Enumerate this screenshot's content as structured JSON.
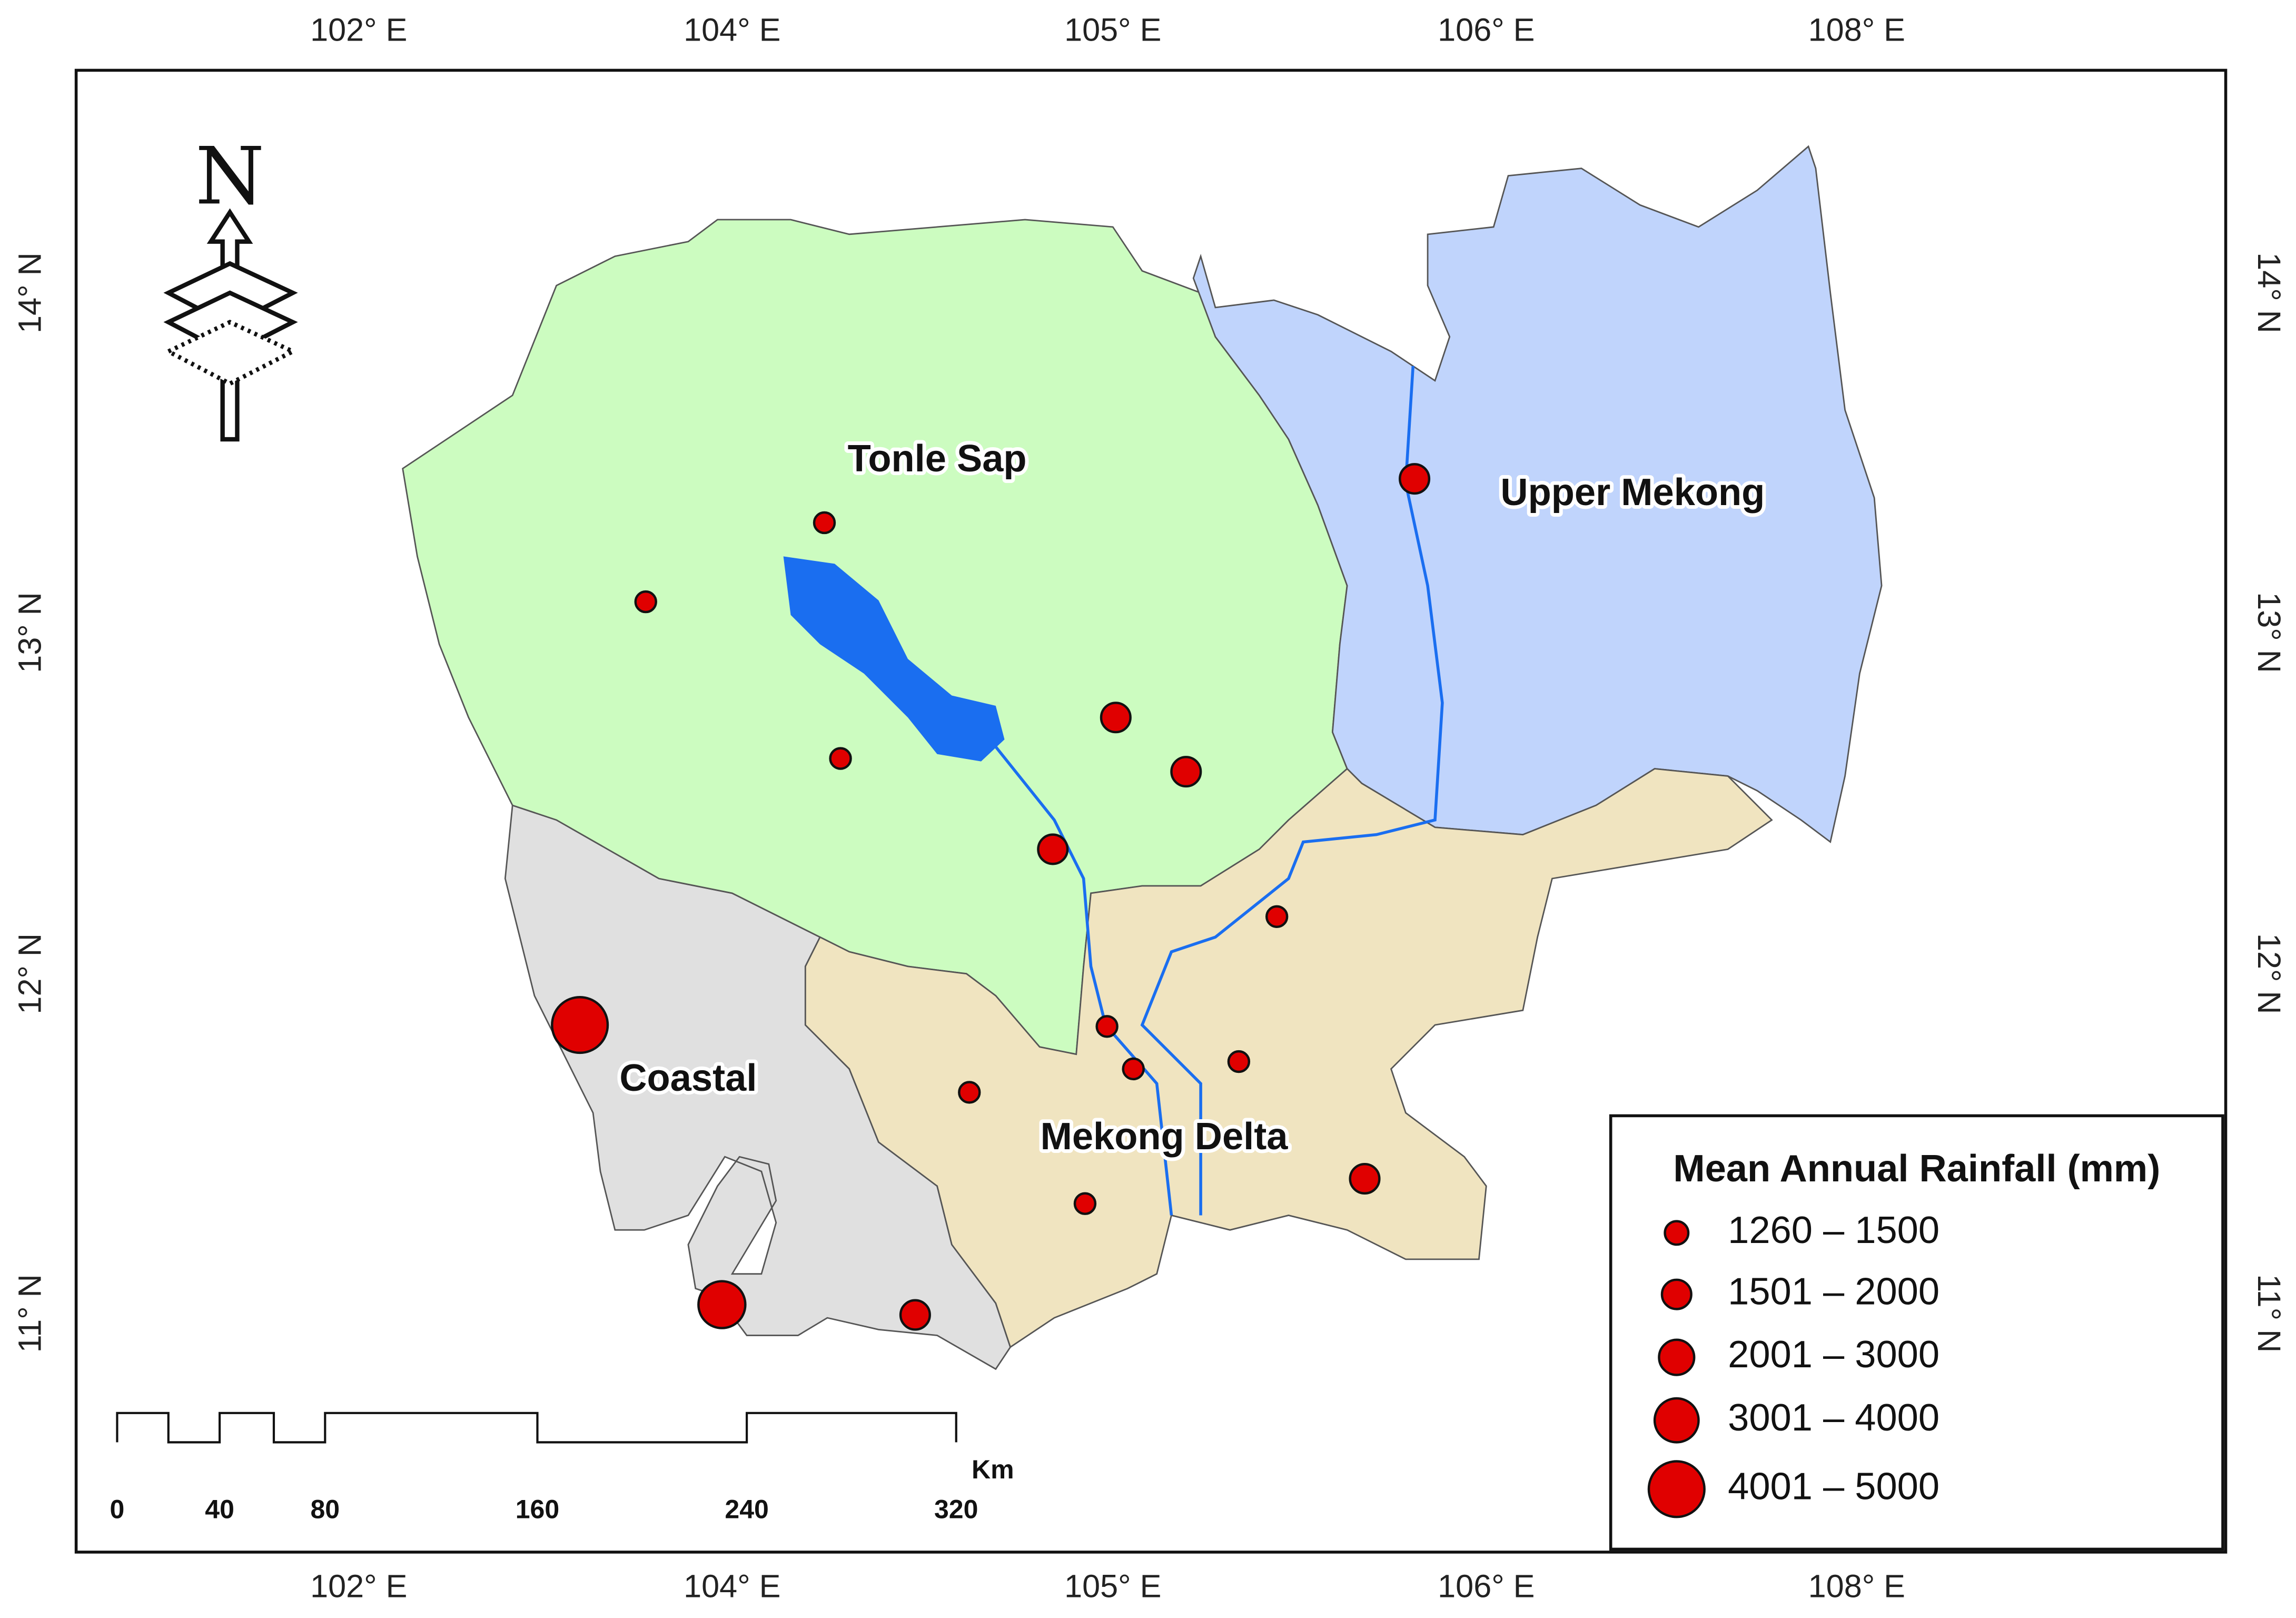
{
  "map": {
    "lon_labels": [
      "102° E",
      "104° E",
      "105° E",
      "106° E",
      "108° E"
    ],
    "lat_labels": [
      "14° N",
      "13° N",
      "12° N",
      "11° N"
    ],
    "north": "N",
    "regions": [
      "Tonle Sap",
      "Upper Mekong",
      "Coastal",
      "Mekong Delta"
    ],
    "legend": {
      "title": "Mean Annual Rainfall (mm)",
      "classes": [
        "1260 – 1500",
        "1501 – 2000",
        "2001 – 3000",
        "3001 – 4000",
        "4001 – 5000"
      ]
    },
    "scale_bar": {
      "labels": [
        "0",
        "40",
        "80",
        "160",
        "240",
        "320"
      ],
      "unit": "Km"
    }
  }
}
